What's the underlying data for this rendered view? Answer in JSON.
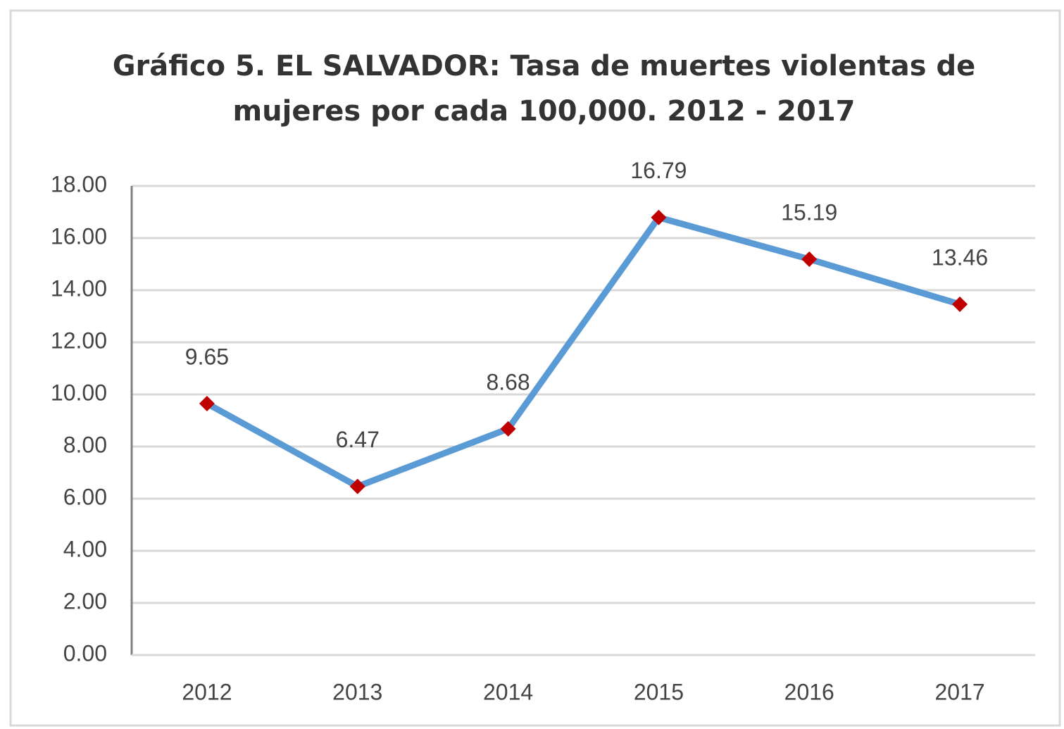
{
  "chart_data": {
    "type": "line",
    "title": "Gráfico 5. EL SALVADOR: Tasa de muertes violentas de mujeres por cada 100,000. 2012 - 2017",
    "categories": [
      "2012",
      "2013",
      "2014",
      "2015",
      "2016",
      "2017"
    ],
    "series": [
      {
        "color": "#5b9bd5",
        "marker_color": "#c00000",
        "values": [
          9.65,
          6.47,
          8.68,
          16.79,
          15.19,
          13.46
        ]
      }
    ],
    "ylim": [
      0,
      18
    ],
    "yticks": [
      {
        "value": 0,
        "label": "0.00"
      },
      {
        "value": 2,
        "label": "2.00"
      },
      {
        "value": 4,
        "label": "4.00"
      },
      {
        "value": 6,
        "label": "6.00"
      },
      {
        "value": 8,
        "label": "8.00"
      },
      {
        "value": 10,
        "label": "10.00"
      },
      {
        "value": 12,
        "label": "12.00"
      },
      {
        "value": 14,
        "label": "14.00"
      },
      {
        "value": 16,
        "label": "16.00"
      },
      {
        "value": 18,
        "label": "18.00"
      }
    ],
    "grid": true
  }
}
